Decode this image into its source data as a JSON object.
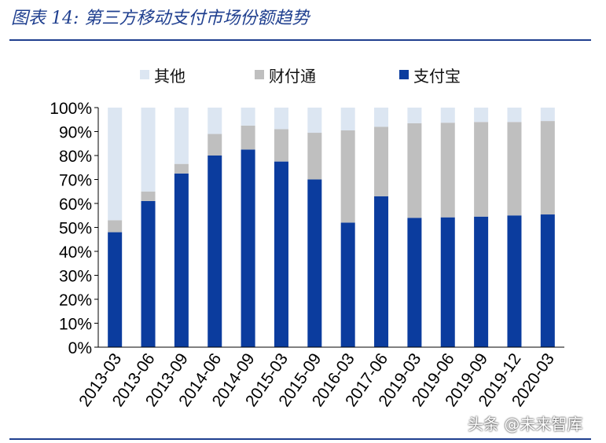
{
  "caption": "图表 14:  第三方移动支付市场份额趋势",
  "watermark": "头条 @未来智库",
  "colors": {
    "accent": "#1f3f8f",
    "alipay": "#0b3c9e",
    "tenpay": "#bfbfbf",
    "other": "#dce6f2"
  },
  "chart_data": {
    "type": "bar",
    "stacked": true,
    "categories": [
      "2013-03",
      "2013-06",
      "2013-09",
      "2014-06",
      "2014-09",
      "2015-03",
      "2015-09",
      "2016-03",
      "2017-06",
      "2019-03",
      "2019-06",
      "2019-09",
      "2019-12",
      "2020-03"
    ],
    "series": [
      {
        "name": "支付宝",
        "color": "#0b3c9e",
        "values": [
          48,
          61,
          72.5,
          80,
          82.5,
          77.5,
          70,
          52,
          63,
          54,
          54.2,
          54.5,
          55,
          55.4
        ]
      },
      {
        "name": "财付通",
        "color": "#bfbfbf",
        "values": [
          5,
          4,
          4,
          9,
          10,
          13.5,
          19.5,
          38.5,
          29,
          39.5,
          39.5,
          39.5,
          39,
          39
        ]
      },
      {
        "name": "其他",
        "color": "#dce6f2",
        "values": [
          47,
          35,
          23.5,
          11,
          7.5,
          9,
          10.5,
          9.5,
          8,
          6.5,
          6.3,
          6,
          6,
          5.6
        ]
      }
    ],
    "legend": [
      "其他",
      "财付通",
      "支付宝"
    ],
    "legend_position": "top",
    "ylim": [
      0,
      100
    ],
    "yticks": [
      "0%",
      "10%",
      "20%",
      "30%",
      "40%",
      "50%",
      "60%",
      "70%",
      "80%",
      "90%",
      "100%"
    ],
    "grid": false
  }
}
